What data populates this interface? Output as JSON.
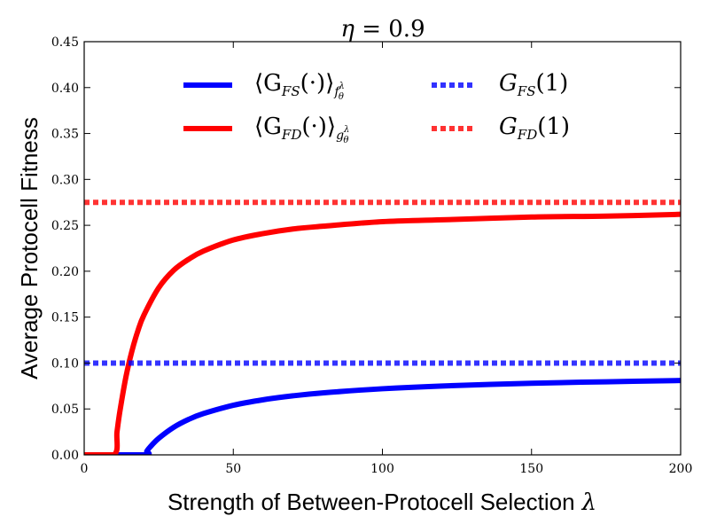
{
  "chart_data": {
    "type": "line",
    "title": {
      "symbol": "η",
      "equals": " = 0.9"
    },
    "xlabel": "Strength of Between-Protocell Selection",
    "xlabel_symbol": "λ",
    "ylabel": "Average Protocell Fitness",
    "xlim": [
      0,
      200
    ],
    "ylim": [
      0,
      0.45
    ],
    "xticks": [
      "0",
      "50",
      "100",
      "150",
      "200"
    ],
    "yticks": [
      "0.00",
      "0.05",
      "0.10",
      "0.15",
      "0.20",
      "0.25",
      "0.30",
      "0.35",
      "0.40",
      "0.45"
    ],
    "grid": false,
    "series": [
      {
        "name": "⟨G_FS(·)⟩_fθλ",
        "legend_main": "⟨G",
        "legend_sub": "FS",
        "legend_mid": "(·)⟩",
        "legend_sub2": "f",
        "legend_sup2": "λ",
        "legend_sub3": "θ",
        "style": "solid",
        "color": "#0000ff",
        "x": [
          0,
          20,
          21,
          22,
          25,
          30,
          35,
          40,
          50,
          60,
          70,
          80,
          100,
          120,
          150,
          175,
          200
        ],
        "y": [
          0,
          0,
          0.004,
          0.0082,
          0.018,
          0.03,
          0.0386,
          0.045,
          0.054,
          0.06,
          0.0643,
          0.0675,
          0.072,
          0.075,
          0.078,
          0.0796,
          0.081
        ]
      },
      {
        "name": "⟨G_FD(·)⟩_gθλ",
        "legend_main": "⟨G",
        "legend_sub": "FD",
        "legend_mid": "(·)⟩",
        "legend_sub2": "g",
        "legend_sup2": "λ",
        "legend_sub3": "θ",
        "style": "solid",
        "color": "#ff0000",
        "x": [
          0,
          10,
          11,
          12,
          14,
          16,
          18,
          20,
          25,
          30,
          35,
          40,
          50,
          60,
          70,
          80,
          100,
          120,
          150,
          175,
          200
        ],
        "y": [
          0,
          0,
          0.025,
          0.048,
          0.085,
          0.113,
          0.135,
          0.152,
          0.182,
          0.201,
          0.213,
          0.222,
          0.234,
          0.241,
          0.246,
          0.249,
          0.254,
          0.256,
          0.259,
          0.26,
          0.262
        ]
      },
      {
        "name": "G_FS(1)",
        "legend_main": "G",
        "legend_sub": "FS",
        "legend_mid": "(1)",
        "style": "dotted",
        "color": "#0000ff",
        "x": [
          0,
          200
        ],
        "y": [
          0.1,
          0.1
        ]
      },
      {
        "name": "G_FD(1)",
        "legend_main": "G",
        "legend_sub": "FD",
        "legend_mid": "(1)",
        "style": "dotted",
        "color": "#ff0000",
        "x": [
          0,
          200
        ],
        "y": [
          0.275,
          0.275
        ]
      }
    ],
    "legend": {
      "placement": "upper-center",
      "columns": 2
    }
  }
}
